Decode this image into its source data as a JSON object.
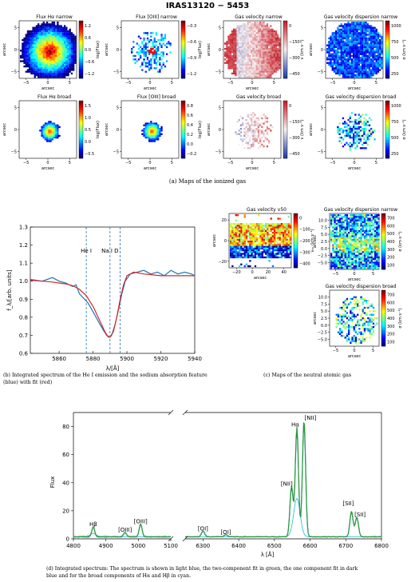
{
  "figure": {
    "title": "IRAS13120 − 5453",
    "panel_a": {
      "maps": [
        {
          "title": "Flux Hα narrow",
          "cbar_label": "log(Flux)",
          "ticks": [
            "1.2",
            "0.6",
            "0.0",
            "−0.6",
            "−1.2"
          ],
          "cmap": "jet"
        },
        {
          "title": "Flux [OIII] narrow",
          "cbar_label": "log(Flux)",
          "ticks": [
            "−0.3",
            "−0.6",
            "−0.9",
            "−1.2"
          ],
          "cmap": "jet"
        },
        {
          "title": "Gas velocity narrow",
          "cbar_label": "v (km s⁻¹)",
          "ticks": [
            "0",
            "−150",
            "−300",
            "−450"
          ],
          "cmap": "rdbu"
        },
        {
          "title": "Gas velocity dispersion narrow",
          "cbar_label": "σ (km s⁻¹)",
          "ticks": [
            "1000",
            "750",
            "500",
            "250"
          ],
          "cmap": "jet"
        },
        {
          "title": "Flux Hα broad",
          "cbar_label": "log(Flux)",
          "ticks": [
            "1.5",
            "1.0",
            "0.5",
            "0.0",
            "−0.5"
          ],
          "cmap": "jet"
        },
        {
          "title": "Flux [OIII] broad",
          "cbar_label": "log(Flux)",
          "ticks": [
            "0.8",
            "0.6",
            "0.4",
            "0.2",
            "0.0",
            "−0.2"
          ],
          "cmap": "jet"
        },
        {
          "title": "Gas velocity broad",
          "cbar_label": "v (km s⁻¹)",
          "ticks": [
            "0",
            "−150",
            "−300",
            "−450"
          ],
          "cmap": "rdbu"
        },
        {
          "title": "Gas velocity dispersion broad",
          "cbar_label": "σ (km s⁻¹)",
          "ticks": [
            "1000",
            "750",
            "500",
            "250"
          ],
          "cmap": "jet"
        }
      ],
      "x_ticks": [
        "−5",
        "0",
        "5"
      ],
      "y_ticks": [
        "5",
        "0",
        "−5"
      ],
      "axis_label": "arcsec",
      "caption": "(a) Maps of the ionized gas"
    },
    "panel_b": {
      "caption_line1": "(b) Integrated spectrum of the He I emission and the sodium absorption feature",
      "caption_line2": "(blue) with fit (red)"
    },
    "panel_c": {
      "maps": [
        {
          "title": "Gas velocity v50",
          "cbar_label": "v₅₀ (km s⁻¹)",
          "ticks": [
            "0",
            "−100",
            "−200",
            "−300",
            "−400"
          ],
          "x_ticks": [
            "−20",
            "0",
            "20",
            "40"
          ],
          "y_ticks": [
            "20",
            "0",
            "−20"
          ]
        },
        {
          "title": "Gas velocity dispersion narrow",
          "cbar_label": "σ (km s⁻¹)",
          "ticks": [
            "700",
            "600",
            "500",
            "400",
            "300",
            "200",
            "100"
          ],
          "x_ticks": [
            "−5",
            "0",
            "5"
          ],
          "y_ticks": [
            "10.0",
            "7.5",
            "5.0",
            "2.5",
            "0.0",
            "−2.5",
            "−5.0"
          ]
        },
        {
          "title": "Gas velocity dispersion broad",
          "cbar_label": "σ (km s⁻¹)",
          "ticks": [
            "700",
            "600",
            "500",
            "400",
            "300",
            "200",
            "100"
          ],
          "x_ticks": [
            "−5",
            "0",
            "5"
          ],
          "y_ticks": [
            "10.0",
            "7.5",
            "5.0",
            "2.5",
            "0.0",
            "−2.5",
            "−5.0"
          ]
        }
      ],
      "axis_label": "arcsec",
      "caption": "(c) Maps of the neutral atomic gas"
    },
    "panel_d": {
      "caption_line1": "(d) Integrated spectrum: The spectrum is shown in light blue, the two-component fit in green, the one component fit in dark",
      "caption_line2": "blue and for the broad components of Hα and Hβ in cyan."
    }
  },
  "chart_data": [
    {
      "type": "line",
      "xlabel": "λ/[Å]",
      "ylabel": "f_λ/[arb. units]",
      "xlim": [
        5843,
        5940
      ],
      "ylim": [
        0.6,
        1.3
      ],
      "x_ticks": [
        5860,
        5880,
        5900,
        5920,
        5940
      ],
      "y_ticks": [
        0.6,
        0.7,
        0.8,
        0.9,
        1.0,
        1.1,
        1.2,
        1.3
      ],
      "grid": false,
      "vlines": [
        {
          "x": 5876,
          "label": "He I"
        },
        {
          "x": 5890,
          "label": "Na I D"
        },
        {
          "x": 5896,
          "label": ""
        }
      ],
      "series": [
        {
          "color": "#1f77b4",
          "x": [
            5843,
            5850,
            5856,
            5860,
            5864,
            5868,
            5870,
            5872,
            5875,
            5877,
            5880,
            5883,
            5886,
            5888,
            5890,
            5891,
            5893,
            5895,
            5897,
            5899,
            5902,
            5906,
            5910,
            5914,
            5918,
            5922,
            5926,
            5930,
            5934,
            5938,
            5940
          ],
          "values": [
            1.01,
            1.0,
            1.02,
            1.0,
            0.99,
            0.97,
            0.98,
            0.93,
            0.9,
            0.88,
            0.83,
            0.78,
            0.73,
            0.7,
            0.69,
            0.7,
            0.76,
            0.84,
            0.93,
            1.0,
            1.04,
            1.05,
            1.06,
            1.04,
            1.05,
            1.03,
            1.06,
            1.04,
            1.05,
            1.04,
            1.03
          ]
        },
        {
          "color": "#d62728",
          "x": [
            5843,
            5850,
            5856,
            5860,
            5864,
            5868,
            5872,
            5876,
            5880,
            5884,
            5887,
            5889,
            5890,
            5892,
            5894,
            5896,
            5898,
            5900,
            5904,
            5910,
            5920,
            5930,
            5940
          ],
          "values": [
            1.005,
            1.0,
            0.995,
            0.99,
            0.985,
            0.975,
            0.955,
            0.92,
            0.86,
            0.78,
            0.72,
            0.69,
            0.69,
            0.72,
            0.8,
            0.9,
            0.98,
            1.03,
            1.05,
            1.04,
            1.03,
            1.03,
            1.03
          ]
        }
      ]
    },
    {
      "type": "line",
      "xlabel": "λ [Å]",
      "ylabel": "Flux",
      "ylim": [
        0,
        90
      ],
      "y_ticks": [
        0,
        20,
        40,
        60,
        80
      ],
      "segments": [
        {
          "xlim": [
            4800,
            5100
          ],
          "x_ticks": [
            4800,
            4900,
            5000,
            5100
          ]
        },
        {
          "xlim": [
            6250,
            6800
          ],
          "x_ticks": [
            6300,
            6400,
            6500,
            6600,
            6700,
            6800
          ]
        }
      ],
      "lines": [
        {
          "label": "Hβ",
          "x": 4861,
          "peak": 7
        },
        {
          "label": "[OIII]",
          "x": 4959,
          "peak": 3
        },
        {
          "label": "[OIII]",
          "x": 5007,
          "peak": 9
        },
        {
          "label": "[OI]",
          "x": 6300,
          "peak": 4
        },
        {
          "label": "[OI]",
          "x": 6364,
          "peak": 1.5
        },
        {
          "label": "[NII]",
          "x": 6548,
          "peak": 36
        },
        {
          "label": "Hα",
          "x": 6563,
          "peak": 78
        },
        {
          "label": "[NII]",
          "x": 6583,
          "peak": 83
        },
        {
          "label": "[SII]",
          "x": 6716,
          "peak": 18
        },
        {
          "label": "[SII]",
          "x": 6731,
          "peak": 14
        }
      ],
      "series": [
        {
          "name": "spectrum",
          "color": "#9ecae1"
        },
        {
          "name": "two-component fit",
          "color": "#2ca02c"
        },
        {
          "name": "one component fit",
          "color": "#08306b"
        },
        {
          "name": "broad components",
          "color": "#17becf"
        }
      ]
    }
  ]
}
